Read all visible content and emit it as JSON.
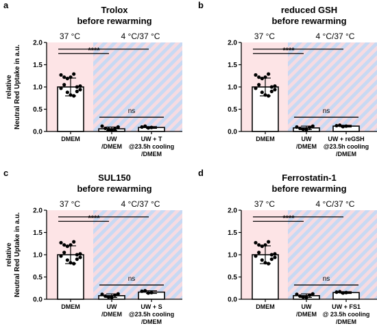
{
  "chart_data": [
    {
      "type": "bar",
      "panel_letter": "a",
      "title_lines": [
        "Trolox",
        "before rewarming"
      ],
      "zone_labels": [
        "37 °C",
        "4 °C/37 °C"
      ],
      "ylabel_lines": [
        "relative",
        "Neutral Red Uptake in a.u."
      ],
      "ylim": [
        0,
        2.0
      ],
      "yticks": [
        "0.0",
        "0.5",
        "1.0",
        "1.5",
        "2.0"
      ],
      "categories": [
        [
          "DMEM"
        ],
        [
          "UW",
          "/DMEM"
        ],
        [
          "UW + T",
          "@23.5h cooling",
          "/DMEM"
        ]
      ],
      "values": [
        1.0,
        0.06,
        0.09
      ],
      "errors": [
        0.2,
        0.04,
        0.02
      ],
      "points": [
        [
          1.27,
          1.22,
          1.19,
          1.22,
          1.29,
          1.0,
          0.94,
          0.97,
          1.05,
          0.88,
          0.82,
          0.8,
          0.9,
          1.02
        ],
        [
          0.12,
          0.07,
          0.05,
          0.03,
          0.06,
          0.1
        ],
        [
          0.1,
          0.12,
          0.08,
          0.09
        ]
      ],
      "significance": [
        {
          "from": 0,
          "to": 1,
          "label": ""
        },
        {
          "from": 0,
          "to": 2,
          "label": "****"
        },
        {
          "from": 1,
          "to": 2,
          "label": "ns"
        }
      ],
      "background": {
        "control": "#fde4e6",
        "stripe_a": "#f6dbe2",
        "stripe_b": "#c8d9f3"
      }
    },
    {
      "type": "bar",
      "panel_letter": "b",
      "title_lines": [
        "reduced GSH",
        "before rewarming"
      ],
      "zone_labels": [
        "37 °C",
        "4 °C/37 °C"
      ],
      "ylabel_lines": [],
      "ylim": [
        0,
        2.0
      ],
      "yticks": [
        "0.0",
        "0.5",
        "1.0",
        "1.5",
        "2.0"
      ],
      "categories": [
        [
          "DMEM"
        ],
        [
          "UW",
          "/DMEM"
        ],
        [
          "UW + reGSH",
          "@23.5h cooling",
          "/DMEM"
        ]
      ],
      "values": [
        1.0,
        0.08,
        0.12
      ],
      "errors": [
        0.2,
        0.04,
        0.02
      ],
      "points": [
        [
          1.27,
          1.22,
          1.19,
          1.22,
          1.29,
          1.0,
          0.94,
          0.97,
          1.05,
          0.88,
          0.82,
          0.8,
          0.9,
          1.02
        ],
        [
          0.1,
          0.07,
          0.05,
          0.04,
          0.09,
          0.12
        ],
        [
          0.13,
          0.14,
          0.11,
          0.12
        ]
      ],
      "significance": [
        {
          "from": 0,
          "to": 1,
          "label": ""
        },
        {
          "from": 0,
          "to": 2,
          "label": "****"
        },
        {
          "from": 1,
          "to": 2,
          "label": "ns"
        }
      ],
      "background": {
        "control": "#fde4e6",
        "stripe_a": "#f6dbe2",
        "stripe_b": "#c8d9f3"
      }
    },
    {
      "type": "bar",
      "panel_letter": "c",
      "title_lines": [
        "SUL150",
        "before rewarming"
      ],
      "zone_labels": [
        "37 °C",
        "4 °C/37 °C"
      ],
      "ylabel_lines": [
        "relative",
        "Neutral Red Uptake in a.u."
      ],
      "ylim": [
        0,
        2.0
      ],
      "yticks": [
        "0.0",
        "0.5",
        "1.0",
        "1.5",
        "2.0"
      ],
      "categories": [
        [
          "DMEM"
        ],
        [
          "UW",
          "/DMEM"
        ],
        [
          "UW + S",
          "@23.5h cooling",
          "/DMEM"
        ]
      ],
      "values": [
        1.0,
        0.08,
        0.16
      ],
      "errors": [
        0.2,
        0.04,
        0.03
      ],
      "points": [
        [
          1.27,
          1.22,
          1.19,
          1.22,
          1.29,
          1.0,
          0.94,
          0.97,
          1.05,
          0.88,
          0.82,
          0.8,
          0.9,
          1.02
        ],
        [
          0.11,
          0.07,
          0.05,
          0.04,
          0.09,
          0.12
        ],
        [
          0.18,
          0.19,
          0.14,
          0.15
        ]
      ],
      "significance": [
        {
          "from": 0,
          "to": 1,
          "label": ""
        },
        {
          "from": 0,
          "to": 2,
          "label": "****"
        },
        {
          "from": 1,
          "to": 2,
          "label": "ns"
        }
      ],
      "background": {
        "control": "#fde4e6",
        "stripe_a": "#f6dbe2",
        "stripe_b": "#c8d9f3"
      }
    },
    {
      "type": "bar",
      "panel_letter": "d",
      "title_lines": [
        "Ferrostatin-1",
        "before rewarming"
      ],
      "zone_labels": [
        "37 °C",
        "4 °C/37 °C"
      ],
      "ylabel_lines": [],
      "ylim": [
        0,
        2.0
      ],
      "yticks": [
        "0.0",
        "0.5",
        "1.0",
        "1.5",
        "2.0"
      ],
      "categories": [
        [
          "DMEM"
        ],
        [
          "UW",
          "/DMEM"
        ],
        [
          "UW + FS1",
          "@ 23.5h cooling",
          "/DMEM"
        ]
      ],
      "values": [
        1.0,
        0.08,
        0.15
      ],
      "errors": [
        0.2,
        0.04,
        0.02
      ],
      "points": [
        [
          1.27,
          1.22,
          1.19,
          1.22,
          1.29,
          1.0,
          0.94,
          0.97,
          1.05,
          0.88,
          0.82,
          0.8,
          0.9,
          1.02
        ],
        [
          0.11,
          0.07,
          0.05,
          0.04,
          0.09,
          0.12
        ],
        [
          0.16,
          0.17,
          0.14,
          0.15
        ]
      ],
      "significance": [
        {
          "from": 0,
          "to": 1,
          "label": ""
        },
        {
          "from": 0,
          "to": 2,
          "label": "****"
        },
        {
          "from": 1,
          "to": 2,
          "label": "ns"
        }
      ],
      "background": {
        "control": "#fde4e6",
        "stripe_a": "#f6dbe2",
        "stripe_b": "#c8d9f3"
      }
    }
  ]
}
